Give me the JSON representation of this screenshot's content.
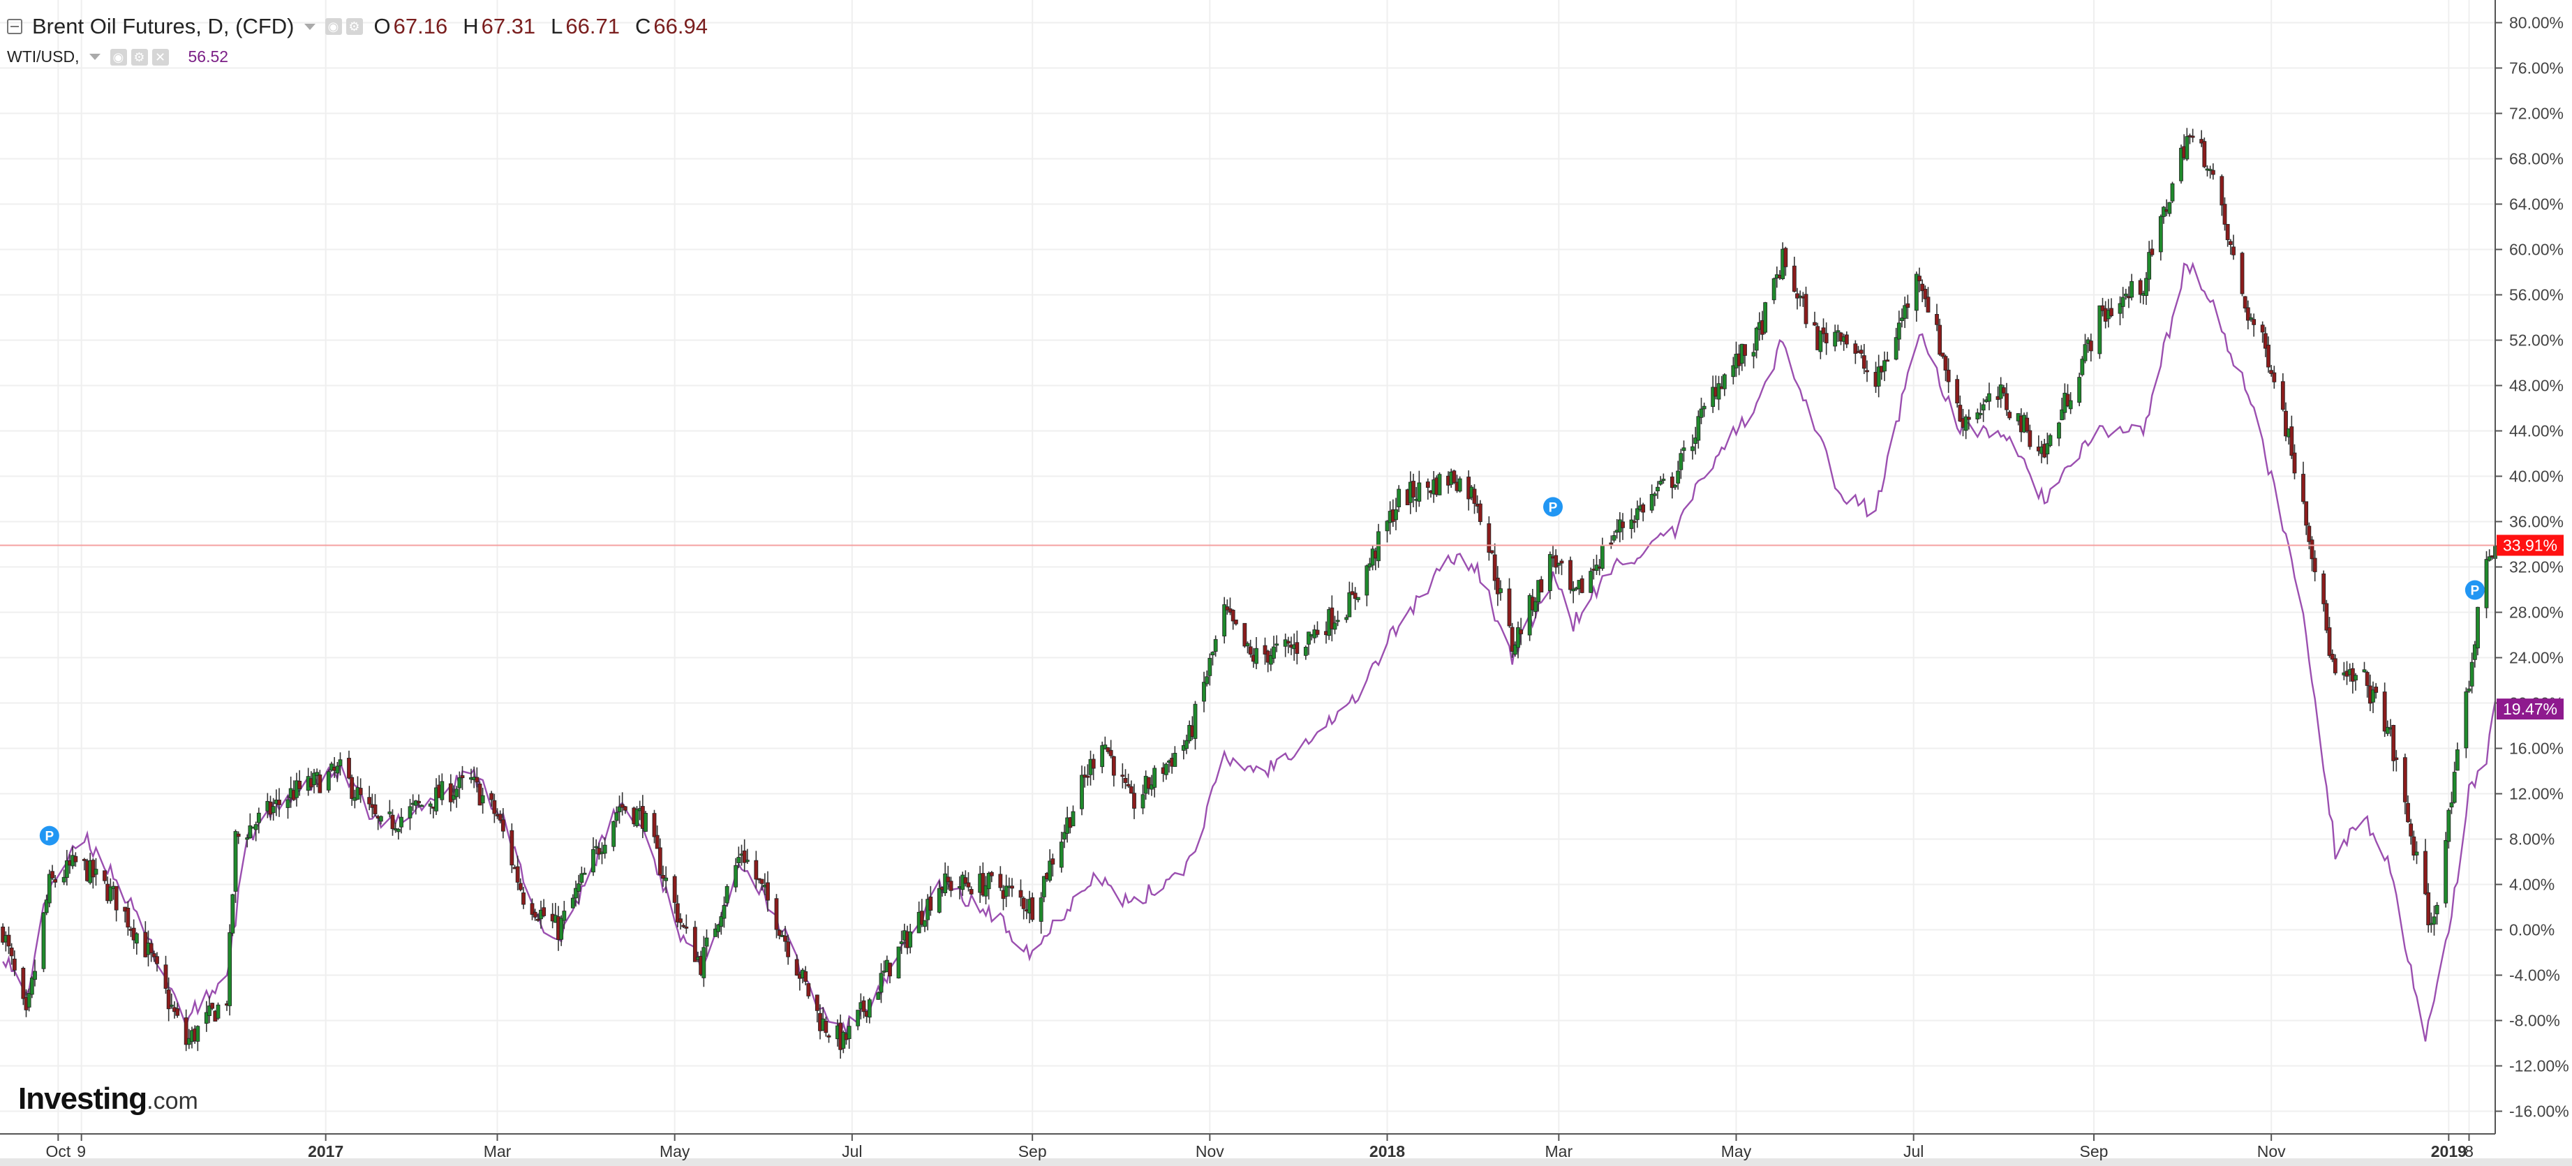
{
  "legend": {
    "main_title": "Brent Oil Futures, D, (CFD)",
    "ohlc": [
      {
        "key": "O",
        "value": "67.16"
      },
      {
        "key": "H",
        "value": "67.31"
      },
      {
        "key": "L",
        "value": "66.71"
      },
      {
        "key": "C",
        "value": "66.94"
      }
    ],
    "compare_title": "WTI/USD,",
    "compare_value": "56.52"
  },
  "logo": {
    "word": "Investing",
    "suffix": ".com"
  },
  "colors": {
    "up": "#1f8a2c",
    "down": "#8b1c1c",
    "wti": "#9b4fb0",
    "current_line": "#f4a0a0",
    "current_badge": "#ff1111",
    "wti_badge": "#8e1a8e",
    "marker": "#2196f3",
    "grid": "#efefef"
  },
  "markers": [
    {
      "date": "2016-09-28",
      "label": "P"
    },
    {
      "date": "2018-02-27",
      "label": "P"
    },
    {
      "date": "2019-01-10",
      "label": "P"
    }
  ],
  "chart_data": {
    "type": "candlestick",
    "x_axis_labels": [
      {
        "date": "2016-10-01",
        "label": "Oct"
      },
      {
        "date": "2016-10-09",
        "label": "9"
      },
      {
        "date": "2017-01-01",
        "label": "2017"
      },
      {
        "date": "2017-03-01",
        "label": "Mar"
      },
      {
        "date": "2017-05-01",
        "label": "May"
      },
      {
        "date": "2017-07-01",
        "label": "Jul"
      },
      {
        "date": "2017-09-01",
        "label": "Sep"
      },
      {
        "date": "2017-11-01",
        "label": "Nov"
      },
      {
        "date": "2018-01-01",
        "label": "2018"
      },
      {
        "date": "2018-03-01",
        "label": "Mar"
      },
      {
        "date": "2018-05-01",
        "label": "May"
      },
      {
        "date": "2018-07-01",
        "label": "Jul"
      },
      {
        "date": "2018-09-01",
        "label": "Sep"
      },
      {
        "date": "2018-11-01",
        "label": "Nov"
      },
      {
        "date": "2019-01-01",
        "label": "2019"
      },
      {
        "date": "2019-01-08",
        "label": "8"
      }
    ],
    "y_ticks": [
      "80.00%",
      "76.00%",
      "72.00%",
      "68.00%",
      "64.00%",
      "60.00%",
      "56.00%",
      "52.00%",
      "48.00%",
      "44.00%",
      "40.00%",
      "36.00%",
      "32.00%",
      "28.00%",
      "24.00%",
      "20.00%",
      "16.00%",
      "12.00%",
      "8.00%",
      "4.00%",
      "0.00%",
      "-4.00%",
      "-8.00%",
      "-12.00%",
      "-16.00%"
    ],
    "ylim": [
      -18,
      82
    ],
    "xlim": [
      "2016-09-11",
      "2019-01-17"
    ],
    "current_value": 33.91,
    "current_label": "33.91%",
    "compare_current_value": 19.47,
    "compare_label": "19.47%",
    "series": [
      {
        "name": "Brent Oil Futures",
        "anchors": [
          [
            "2016-09-12",
            0
          ],
          [
            "2016-09-20",
            -8
          ],
          [
            "2016-09-28",
            4
          ],
          [
            "2016-10-08",
            6
          ],
          [
            "2016-10-20",
            3
          ],
          [
            "2016-11-01",
            -2
          ],
          [
            "2016-11-14",
            -10
          ],
          [
            "2016-11-28",
            -6
          ],
          [
            "2016-12-01",
            8
          ],
          [
            "2016-12-20",
            12
          ],
          [
            "2017-01-06",
            14
          ],
          [
            "2017-01-20",
            9
          ],
          [
            "2017-02-10",
            12
          ],
          [
            "2017-02-20",
            13
          ],
          [
            "2017-03-01",
            10
          ],
          [
            "2017-03-10",
            3
          ],
          [
            "2017-03-22",
            0
          ],
          [
            "2017-04-12",
            11
          ],
          [
            "2017-04-20",
            10
          ],
          [
            "2017-05-04",
            0
          ],
          [
            "2017-05-10",
            -3
          ],
          [
            "2017-05-24",
            7
          ],
          [
            "2017-06-05",
            1
          ],
          [
            "2017-06-20",
            -8
          ],
          [
            "2017-06-28",
            -10
          ],
          [
            "2017-07-12",
            -4
          ],
          [
            "2017-07-31",
            4
          ],
          [
            "2017-08-20",
            4
          ],
          [
            "2017-09-01",
            2
          ],
          [
            "2017-09-25",
            17
          ],
          [
            "2017-10-05",
            11
          ],
          [
            "2017-10-25",
            17
          ],
          [
            "2017-11-06",
            28
          ],
          [
            "2017-11-15",
            24
          ],
          [
            "2017-12-01",
            25
          ],
          [
            "2017-12-20",
            29
          ],
          [
            "2018-01-05",
            38
          ],
          [
            "2018-01-24",
            40
          ],
          [
            "2018-02-01",
            38
          ],
          [
            "2018-02-13",
            25
          ],
          [
            "2018-02-27",
            33
          ],
          [
            "2018-03-06",
            29
          ],
          [
            "2018-03-20",
            35
          ],
          [
            "2018-04-10",
            40
          ],
          [
            "2018-04-24",
            48
          ],
          [
            "2018-05-08",
            52
          ],
          [
            "2018-05-17",
            59
          ],
          [
            "2018-05-29",
            52
          ],
          [
            "2018-06-06",
            53
          ],
          [
            "2018-06-18",
            48
          ],
          [
            "2018-07-03",
            58
          ],
          [
            "2018-07-17",
            45
          ],
          [
            "2018-07-31",
            47
          ],
          [
            "2018-08-15",
            42
          ],
          [
            "2018-09-03",
            54
          ],
          [
            "2018-09-18",
            57
          ],
          [
            "2018-10-03",
            70
          ],
          [
            "2018-10-10",
            68
          ],
          [
            "2018-10-23",
            55
          ],
          [
            "2018-11-01",
            50
          ],
          [
            "2018-11-12",
            38
          ],
          [
            "2018-11-23",
            22
          ],
          [
            "2018-12-03",
            22
          ],
          [
            "2018-12-11",
            18
          ],
          [
            "2018-12-26",
            0
          ],
          [
            "2019-01-03",
            13
          ],
          [
            "2019-01-08",
            22
          ],
          [
            "2019-01-14",
            33
          ],
          [
            "2019-01-17",
            34
          ]
        ]
      },
      {
        "name": "WTI/USD",
        "anchors": [
          [
            "2016-09-12",
            -2
          ],
          [
            "2016-09-20",
            -6
          ],
          [
            "2016-09-28",
            4
          ],
          [
            "2016-10-10",
            8
          ],
          [
            "2016-10-20",
            5
          ],
          [
            "2016-11-03",
            -2
          ],
          [
            "2016-11-14",
            -8
          ],
          [
            "2016-11-28",
            -4
          ],
          [
            "2016-12-05",
            8
          ],
          [
            "2016-12-20",
            12
          ],
          [
            "2017-01-06",
            14
          ],
          [
            "2017-01-20",
            9
          ],
          [
            "2017-02-10",
            12
          ],
          [
            "2017-02-20",
            14
          ],
          [
            "2017-03-03",
            10
          ],
          [
            "2017-03-14",
            1
          ],
          [
            "2017-03-22",
            -1
          ],
          [
            "2017-04-12",
            11
          ],
          [
            "2017-04-20",
            9
          ],
          [
            "2017-05-04",
            -1
          ],
          [
            "2017-05-10",
            -3
          ],
          [
            "2017-05-24",
            6
          ],
          [
            "2017-06-05",
            1
          ],
          [
            "2017-06-20",
            -7
          ],
          [
            "2017-06-28",
            -9
          ],
          [
            "2017-07-12",
            -5
          ],
          [
            "2017-07-31",
            4
          ],
          [
            "2017-08-20",
            1
          ],
          [
            "2017-09-01",
            -2
          ],
          [
            "2017-09-22",
            5
          ],
          [
            "2017-10-05",
            2
          ],
          [
            "2017-10-25",
            6
          ],
          [
            "2017-11-06",
            15
          ],
          [
            "2017-11-20",
            14
          ],
          [
            "2017-12-05",
            17
          ],
          [
            "2017-12-20",
            20
          ],
          [
            "2018-01-05",
            27
          ],
          [
            "2018-01-24",
            33
          ],
          [
            "2018-02-01",
            32
          ],
          [
            "2018-02-13",
            24
          ],
          [
            "2018-02-27",
            31
          ],
          [
            "2018-03-06",
            27
          ],
          [
            "2018-03-20",
            32
          ],
          [
            "2018-04-10",
            35
          ],
          [
            "2018-04-24",
            42
          ],
          [
            "2018-05-08",
            46
          ],
          [
            "2018-05-17",
            52
          ],
          [
            "2018-05-29",
            44
          ],
          [
            "2018-06-06",
            38
          ],
          [
            "2018-06-18",
            37
          ],
          [
            "2018-07-03",
            53
          ],
          [
            "2018-07-17",
            44
          ],
          [
            "2018-07-31",
            44
          ],
          [
            "2018-08-15",
            38
          ],
          [
            "2018-09-03",
            44
          ],
          [
            "2018-09-18",
            44
          ],
          [
            "2018-10-03",
            59
          ],
          [
            "2018-10-10",
            56
          ],
          [
            "2018-10-23",
            48
          ],
          [
            "2018-11-01",
            40
          ],
          [
            "2018-11-12",
            28
          ],
          [
            "2018-11-23",
            7
          ],
          [
            "2018-12-03",
            10
          ],
          [
            "2018-12-11",
            6
          ],
          [
            "2018-12-24",
            -10
          ],
          [
            "2019-01-03",
            3
          ],
          [
            "2019-01-08",
            12
          ],
          [
            "2019-01-14",
            15
          ],
          [
            "2019-01-17",
            19.5
          ]
        ]
      }
    ]
  }
}
